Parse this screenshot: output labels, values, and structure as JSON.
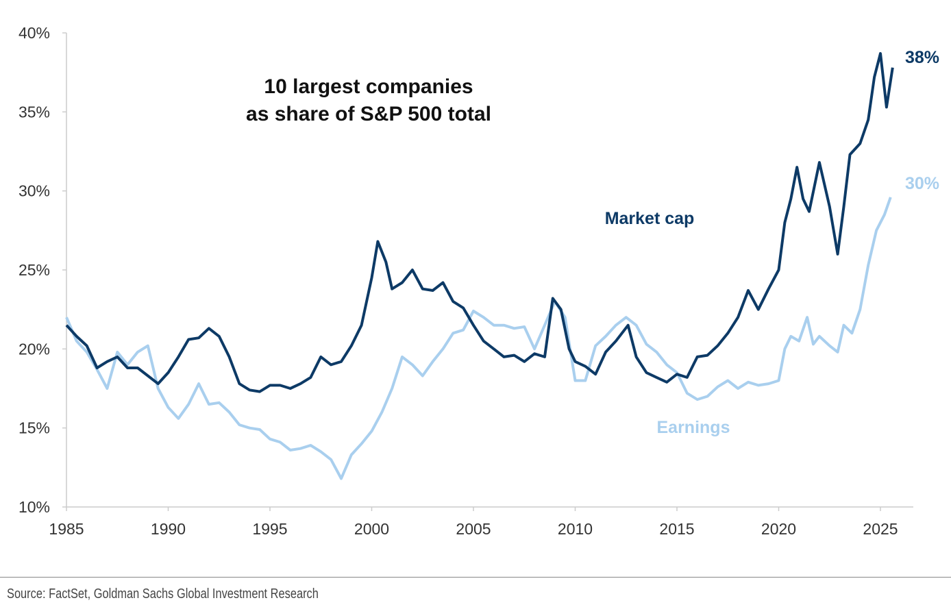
{
  "chart_data": {
    "type": "line",
    "title": [
      "10 largest companies",
      "as share of S&P 500 total"
    ],
    "xlabel": "",
    "ylabel": "",
    "xlim": [
      1985,
      2025
    ],
    "ylim": [
      10,
      40
    ],
    "x_ticks": [
      "1985",
      "1990",
      "1995",
      "2000",
      "2005",
      "2010",
      "2015",
      "2020",
      "2025"
    ],
    "y_ticks": [
      "10%",
      "15%",
      "20%",
      "25%",
      "30%",
      "35%",
      "40%"
    ],
    "grid": false,
    "series": [
      {
        "name": "Market cap",
        "color": "#0d3a66",
        "end_label": "38%",
        "x": [
          1985,
          1985.5,
          1986,
          1986.5,
          1987,
          1987.5,
          1988,
          1988.5,
          1989,
          1989.5,
          1990,
          1990.5,
          1991,
          1991.5,
          1992,
          1992.5,
          1993,
          1993.5,
          1994,
          1994.5,
          1995,
          1995.5,
          1996,
          1996.5,
          1997,
          1997.5,
          1998,
          1998.5,
          1999,
          1999.5,
          2000,
          2000.3,
          2000.7,
          2001,
          2001.5,
          2002,
          2002.5,
          2003,
          2003.5,
          2004,
          2004.5,
          2005,
          2005.5,
          2006,
          2006.5,
          2007,
          2007.5,
          2008,
          2008.5,
          2008.9,
          2009.3,
          2009.7,
          2010,
          2010.5,
          2011,
          2011.5,
          2012,
          2012.6,
          2013,
          2013.5,
          2014,
          2014.5,
          2015,
          2015.5,
          2016,
          2016.5,
          2017,
          2017.5,
          2018,
          2018.5,
          2019,
          2019.5,
          2020,
          2020.3,
          2020.6,
          2020.9,
          2021.2,
          2021.5,
          2022,
          2022.5,
          2022.9,
          2023.2,
          2023.5,
          2024,
          2024.4,
          2024.7,
          2025,
          2025.3,
          2025.6
        ],
        "values": [
          21.5,
          20.8,
          20.2,
          18.8,
          19.2,
          19.5,
          18.8,
          18.8,
          18.3,
          17.8,
          18.5,
          19.5,
          20.6,
          20.7,
          21.3,
          20.8,
          19.5,
          17.8,
          17.4,
          17.3,
          17.7,
          17.7,
          17.5,
          17.8,
          18.2,
          19.5,
          19.0,
          19.2,
          20.2,
          21.5,
          24.5,
          26.8,
          25.5,
          23.8,
          24.2,
          25.0,
          23.8,
          23.7,
          24.2,
          23.0,
          22.6,
          21.5,
          20.5,
          20.0,
          19.5,
          19.6,
          19.2,
          19.7,
          19.5,
          23.2,
          22.5,
          20.0,
          19.2,
          18.9,
          18.4,
          19.8,
          20.5,
          21.5,
          19.5,
          18.5,
          18.2,
          17.9,
          18.4,
          18.2,
          19.5,
          19.6,
          20.2,
          21.0,
          22.0,
          23.7,
          22.5,
          23.8,
          25.0,
          28.0,
          29.5,
          31.5,
          29.5,
          28.7,
          31.8,
          29.0,
          26.0,
          29.0,
          32.3,
          33.0,
          34.5,
          37.2,
          38.7,
          35.3,
          37.8
        ]
      },
      {
        "name": "Earnings",
        "color": "#a9cfee",
        "end_label": "30%",
        "x": [
          1985,
          1985.5,
          1986,
          1986.5,
          1987,
          1987.5,
          1988,
          1988.5,
          1989,
          1989.5,
          1990,
          1990.5,
          1991,
          1991.5,
          1992,
          1992.5,
          1993,
          1993.5,
          1994,
          1994.5,
          1995,
          1995.5,
          1996,
          1996.5,
          1997,
          1997.5,
          1998,
          1998.5,
          1999,
          1999.5,
          2000,
          2000.5,
          2001,
          2001.5,
          2002,
          2002.5,
          2003,
          2003.5,
          2004,
          2004.5,
          2005,
          2005.5,
          2006,
          2006.5,
          2007,
          2007.5,
          2008,
          2008.5,
          2009,
          2009.5,
          2010,
          2010.5,
          2011,
          2011.5,
          2012,
          2012.5,
          2013,
          2013.5,
          2014,
          2014.5,
          2015,
          2015.5,
          2016,
          2016.5,
          2017,
          2017.5,
          2018,
          2018.5,
          2019,
          2019.5,
          2020,
          2020.3,
          2020.6,
          2021,
          2021.4,
          2021.7,
          2022,
          2022.5,
          2022.9,
          2023.2,
          2023.6,
          2024,
          2024.4,
          2024.8,
          2025.2,
          2025.5
        ],
        "values": [
          22.0,
          20.5,
          19.8,
          18.7,
          17.5,
          19.8,
          19.0,
          19.8,
          20.2,
          17.5,
          16.3,
          15.6,
          16.5,
          17.8,
          16.5,
          16.6,
          16.0,
          15.2,
          15.0,
          14.9,
          14.3,
          14.1,
          13.6,
          13.7,
          13.9,
          13.5,
          13.0,
          11.8,
          13.3,
          14.0,
          14.8,
          16.0,
          17.5,
          19.5,
          19.0,
          18.3,
          19.2,
          20.0,
          21.0,
          21.2,
          22.4,
          22.0,
          21.5,
          21.5,
          21.3,
          21.4,
          20.0,
          21.5,
          23.0,
          22.0,
          18.0,
          18.0,
          20.2,
          20.8,
          21.5,
          22.0,
          21.5,
          20.3,
          19.8,
          19.0,
          18.5,
          17.2,
          16.8,
          17.0,
          17.6,
          18.0,
          17.5,
          17.9,
          17.7,
          17.8,
          18.0,
          20.0,
          20.8,
          20.5,
          22.0,
          20.3,
          20.8,
          20.2,
          19.8,
          21.5,
          21.0,
          22.5,
          25.3,
          27.5,
          28.5,
          29.6
        ]
      }
    ],
    "annotations": [
      "Market cap",
      "Earnings"
    ],
    "source": "Source: FactSet, Goldman Sachs Global Investment Research"
  }
}
